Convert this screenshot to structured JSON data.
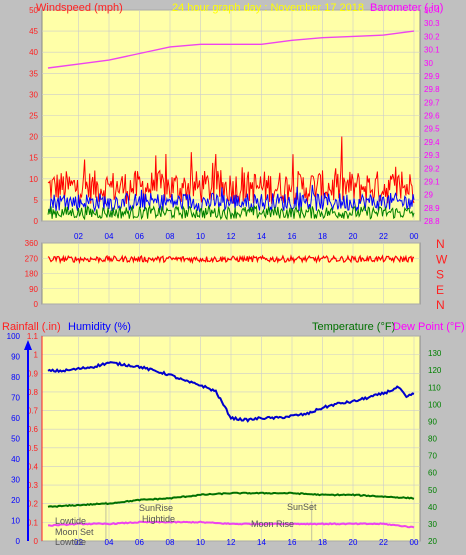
{
  "header": {
    "left_label": "Windspeed (mph)",
    "center_label": "24 hour graph day : November 17 2018",
    "right_label": "Barometer (.in)"
  },
  "colors": {
    "panel_bg": "#ffffa8",
    "page_bg": "#c0c0c0",
    "axis_red": "#ff2020",
    "wind_gust": "#ff0000",
    "wind_avg": "#0000ff",
    "wind_low": "#008000",
    "barometer": "#ee44ee",
    "humidity": "#0000cc",
    "temperature": "#007000",
    "dewpoint": "#ee44ee",
    "header_yellow": "#ffff00",
    "header_magenta": "#ff00ff",
    "lower_blue": "#0000ff"
  },
  "chart_data": [
    {
      "type": "line",
      "name": "wind-barometer",
      "xlabel": "",
      "x_ticks": [
        "02",
        "04",
        "06",
        "08",
        "10",
        "12",
        "14",
        "16",
        "18",
        "20",
        "22",
        "00"
      ],
      "left_axis": {
        "label": "Windspeed (mph)",
        "range": [
          0,
          50
        ],
        "ticks": [
          0,
          5,
          10,
          15,
          20,
          25,
          30,
          35,
          40,
          45,
          50
        ]
      },
      "right_axis": {
        "label": "Barometer (.in)",
        "range": [
          28.8,
          30.4
        ],
        "ticks": [
          "28.8",
          "28.9",
          "29",
          "29.1",
          "29.2",
          "29.3",
          "29.4",
          "29.5",
          "29.6",
          "29.7",
          "29.8",
          "29.9",
          "30",
          "30.1",
          "30.2",
          "30.3",
          "30.4"
        ]
      },
      "series": [
        {
          "name": "Barometer (.in)",
          "axis": "right",
          "x": [
            0,
            2,
            4,
            6,
            8,
            10,
            12,
            14,
            16,
            18,
            20,
            22,
            24
          ],
          "values": [
            29.96,
            29.99,
            30.02,
            30.07,
            30.12,
            30.14,
            30.14,
            30.14,
            30.17,
            30.19,
            30.2,
            30.21,
            30.24
          ]
        }
      ],
      "grid": true
    },
    {
      "type": "line",
      "name": "wind-direction",
      "axis_ticks": [
        0,
        90,
        180,
        270,
        360
      ],
      "range": [
        0,
        360
      ],
      "right_labels": [
        "N",
        "W",
        "S",
        "E",
        "N"
      ],
      "typical_value": 265
    },
    {
      "type": "line",
      "name": "rain-humidity-temperature",
      "x_ticks": [
        "02",
        "04",
        "06",
        "08",
        "10",
        "12",
        "14",
        "16",
        "18",
        "20",
        "22",
        "00"
      ],
      "axis_labels": {
        "rainfall": "Rainfall (.in)",
        "humidity": "Humidity (%)",
        "temperature": "Temperature (°F)",
        "dewpoint": "Dew Point (°F)"
      },
      "humidity_axis": {
        "range": [
          0,
          100
        ],
        "ticks": [
          0,
          10,
          20,
          30,
          40,
          50,
          60,
          70,
          80,
          90,
          100
        ]
      },
      "rain_axis": {
        "range": [
          0,
          1.1
        ],
        "ticks": [
          "0",
          "0.1",
          "0.2",
          "0.3",
          "0.4",
          "0.5",
          "0.6",
          "0.7",
          "0.8",
          "0.9",
          "1",
          "1.1"
        ]
      },
      "temp_axis": {
        "range": [
          20,
          140
        ],
        "ticks": [
          20,
          30,
          40,
          50,
          60,
          70,
          80,
          90,
          100,
          110,
          120,
          130
        ]
      },
      "series": [
        {
          "name": "Humidity (%)",
          "axis": "humidity",
          "x": [
            0,
            1,
            2,
            3,
            4,
            5,
            6,
            7,
            8,
            9,
            10,
            11,
            12,
            13,
            14,
            15,
            16,
            17,
            18,
            19,
            20,
            21,
            22,
            23,
            23.5,
            24
          ],
          "values": [
            83,
            83,
            84,
            85,
            87,
            86,
            85,
            83,
            81,
            78,
            76,
            73,
            60,
            59,
            60,
            60,
            61,
            62,
            65,
            67,
            68,
            70,
            72,
            75,
            70,
            72
          ]
        },
        {
          "name": "Temperature (°F)",
          "axis": "temp",
          "x": [
            0,
            2,
            4,
            6,
            8,
            10,
            12,
            14,
            16,
            18,
            20,
            22,
            24
          ],
          "values": [
            40,
            41,
            42,
            44,
            45,
            47,
            48,
            48,
            48,
            47,
            47,
            46,
            45
          ]
        },
        {
          "name": "Dew Point (°F)",
          "axis": "temp",
          "x": [
            0,
            2,
            4,
            6,
            8,
            10,
            12,
            14,
            16,
            18,
            20,
            22,
            24
          ],
          "values": [
            29,
            30,
            30,
            31,
            31,
            31,
            30,
            30,
            30,
            30,
            30,
            30,
            28
          ]
        }
      ],
      "grid": true
    }
  ],
  "annotations": {
    "lowtide_1": "Lowtide",
    "moon_set": "Moon Set",
    "lowtide_2": "Lowtide",
    "sunrise": "SunRise",
    "hightide": "Hightide",
    "moon_rise": "Moon Rise",
    "sunset": "SunSet"
  }
}
